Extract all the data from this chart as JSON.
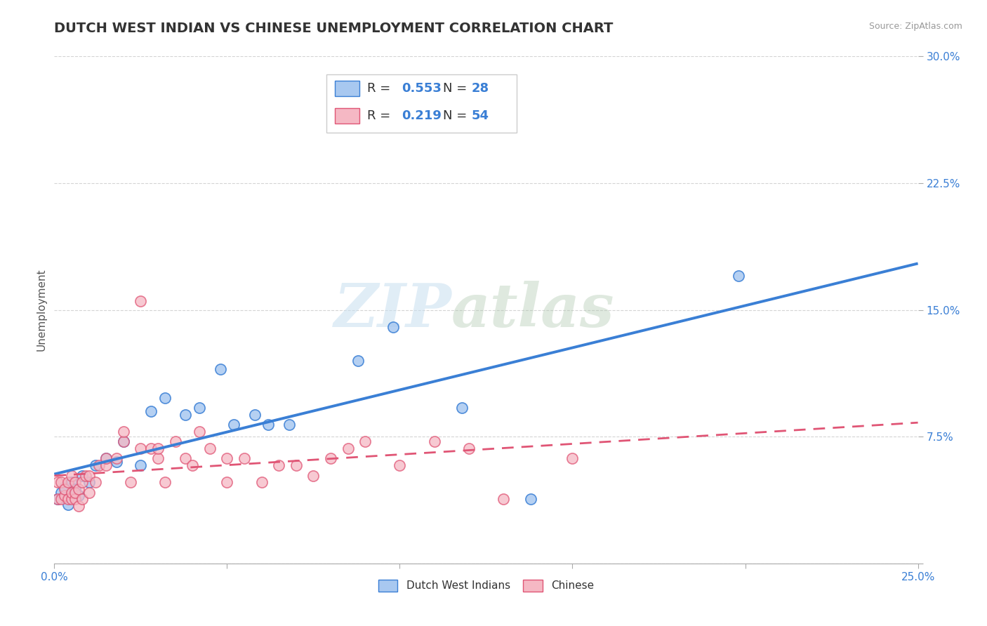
{
  "title": "DUTCH WEST INDIAN VS CHINESE UNEMPLOYMENT CORRELATION CHART",
  "source": "Source: ZipAtlas.com",
  "xlabel": "",
  "ylabel": "Unemployment",
  "xlim": [
    0.0,
    0.25
  ],
  "ylim": [
    0.0,
    0.3
  ],
  "xticks": [
    0.0,
    0.05,
    0.1,
    0.15,
    0.2,
    0.25
  ],
  "yticks": [
    0.0,
    0.075,
    0.15,
    0.225,
    0.3
  ],
  "xtick_labels": [
    "0.0%",
    "",
    "",
    "",
    "",
    "25.0%"
  ],
  "ytick_labels": [
    "",
    "7.5%",
    "15.0%",
    "22.5%",
    "30.0%"
  ],
  "dwi_color": "#a8c8f0",
  "chinese_color": "#f5b8c4",
  "dwi_line_color": "#3a7fd5",
  "chinese_line_color": "#e05575",
  "background_color": "#ffffff",
  "grid_color": "#d0d0d0",
  "watermark_zip": "ZIP",
  "watermark_atlas": "atlas",
  "title_fontsize": 14,
  "axis_label_fontsize": 11,
  "tick_fontsize": 11,
  "dwi_scatter": [
    [
      0.001,
      0.038
    ],
    [
      0.002,
      0.042
    ],
    [
      0.003,
      0.045
    ],
    [
      0.004,
      0.035
    ],
    [
      0.005,
      0.048
    ],
    [
      0.006,
      0.044
    ],
    [
      0.007,
      0.04
    ],
    [
      0.008,
      0.052
    ],
    [
      0.01,
      0.048
    ],
    [
      0.012,
      0.058
    ],
    [
      0.015,
      0.062
    ],
    [
      0.018,
      0.06
    ],
    [
      0.02,
      0.072
    ],
    [
      0.025,
      0.058
    ],
    [
      0.028,
      0.09
    ],
    [
      0.032,
      0.098
    ],
    [
      0.038,
      0.088
    ],
    [
      0.042,
      0.092
    ],
    [
      0.048,
      0.115
    ],
    [
      0.052,
      0.082
    ],
    [
      0.058,
      0.088
    ],
    [
      0.062,
      0.082
    ],
    [
      0.068,
      0.082
    ],
    [
      0.088,
      0.12
    ],
    [
      0.098,
      0.14
    ],
    [
      0.118,
      0.092
    ],
    [
      0.138,
      0.038
    ],
    [
      0.198,
      0.17
    ]
  ],
  "chinese_scatter": [
    [
      0.001,
      0.038
    ],
    [
      0.001,
      0.048
    ],
    [
      0.002,
      0.048
    ],
    [
      0.002,
      0.038
    ],
    [
      0.003,
      0.04
    ],
    [
      0.003,
      0.044
    ],
    [
      0.004,
      0.038
    ],
    [
      0.004,
      0.048
    ],
    [
      0.005,
      0.038
    ],
    [
      0.005,
      0.042
    ],
    [
      0.005,
      0.052
    ],
    [
      0.006,
      0.038
    ],
    [
      0.006,
      0.042
    ],
    [
      0.006,
      0.048
    ],
    [
      0.007,
      0.034
    ],
    [
      0.007,
      0.044
    ],
    [
      0.008,
      0.038
    ],
    [
      0.008,
      0.048
    ],
    [
      0.009,
      0.052
    ],
    [
      0.01,
      0.042
    ],
    [
      0.01,
      0.052
    ],
    [
      0.012,
      0.048
    ],
    [
      0.013,
      0.058
    ],
    [
      0.015,
      0.058
    ],
    [
      0.015,
      0.062
    ],
    [
      0.018,
      0.062
    ],
    [
      0.02,
      0.072
    ],
    [
      0.02,
      0.078
    ],
    [
      0.022,
      0.048
    ],
    [
      0.025,
      0.068
    ],
    [
      0.025,
      0.155
    ],
    [
      0.028,
      0.068
    ],
    [
      0.03,
      0.062
    ],
    [
      0.03,
      0.068
    ],
    [
      0.032,
      0.048
    ],
    [
      0.035,
      0.072
    ],
    [
      0.038,
      0.062
    ],
    [
      0.04,
      0.058
    ],
    [
      0.042,
      0.078
    ],
    [
      0.045,
      0.068
    ],
    [
      0.05,
      0.048
    ],
    [
      0.05,
      0.062
    ],
    [
      0.055,
      0.062
    ],
    [
      0.06,
      0.048
    ],
    [
      0.065,
      0.058
    ],
    [
      0.07,
      0.058
    ],
    [
      0.075,
      0.052
    ],
    [
      0.08,
      0.062
    ],
    [
      0.085,
      0.068
    ],
    [
      0.09,
      0.072
    ],
    [
      0.1,
      0.058
    ],
    [
      0.11,
      0.072
    ],
    [
      0.12,
      0.068
    ],
    [
      0.13,
      0.038
    ],
    [
      0.15,
      0.062
    ]
  ]
}
